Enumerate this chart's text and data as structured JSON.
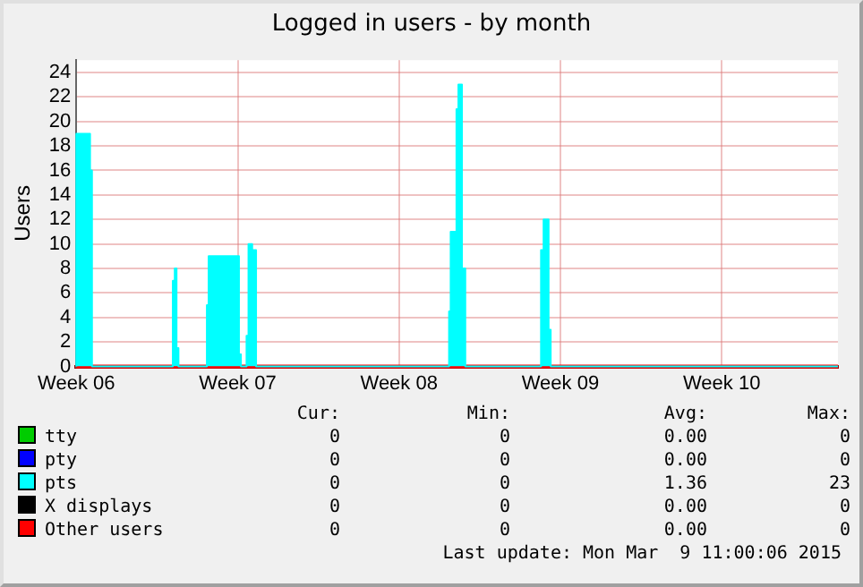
{
  "chart_data": {
    "type": "area",
    "title": "Logged in users - by month",
    "ylabel": "Users",
    "xlim": [
      "2015-02-02",
      "2015-03-07T01:00"
    ],
    "xticks": [
      {
        "value": "2015-02-02",
        "label": "Week 06"
      },
      {
        "value": "2015-02-09",
        "label": "Week 07"
      },
      {
        "value": "2015-02-16",
        "label": "Week 08"
      },
      {
        "value": "2015-02-23",
        "label": "Week 09"
      },
      {
        "value": "2015-03-02",
        "label": "Week 10"
      }
    ],
    "ylim": [
      0,
      25
    ],
    "yticks": [
      0,
      2,
      4,
      6,
      8,
      10,
      12,
      14,
      16,
      18,
      20,
      22,
      24
    ],
    "grid": true,
    "legend": "bottom left",
    "series": [
      {
        "name": "tty",
        "type": "line",
        "color": "#00cc00"
      },
      {
        "name": "pty",
        "type": "line",
        "color": "#0000ff"
      },
      {
        "name": "pts",
        "color": "#00ffff",
        "x": [
          "2015-02-02",
          "2015-02-02",
          "2015-02-02T14:17",
          "2015-02-02T14:17",
          "2015-02-02T16:18",
          "2015-02-02T16:18",
          "2015-02-06T04:28",
          "2015-02-06T04:28",
          "2015-02-06T06:29",
          "2015-02-06T06:29",
          "2015-02-06T08:20",
          "2015-02-06T08:20",
          "2015-02-06T10:21",
          "2015-02-06T10:21",
          "2015-02-07T15:55",
          "2015-02-07T15:55",
          "2015-02-07T17:45",
          "2015-02-07T17:45",
          "2015-02-09T01:21",
          "2015-02-09T01:21",
          "2015-02-09T03:22",
          "2015-02-09T03:22",
          "2015-02-09T09:14",
          "2015-02-09T09:14",
          "2015-02-09T11:15",
          "2015-02-09T11:15",
          "2015-02-09T15:07",
          "2015-02-09T15:07",
          "2015-02-09T19:09",
          "2015-02-09T19:09",
          "2015-02-18T04:05",
          "2015-02-18T04:05",
          "2015-02-18T05:46",
          "2015-02-18T05:46",
          "2015-02-18T11:48",
          "2015-02-18T11:48",
          "2015-02-18T13:49",
          "2015-02-18T13:49",
          "2015-02-18T17:31",
          "2015-02-18T17:31",
          "2015-02-18T21:00",
          "2015-02-18T21:00",
          "2015-02-22T03:50",
          "2015-02-22T03:50",
          "2015-02-22T06:31",
          "2015-02-22T06:31",
          "2015-02-22T11:44",
          "2015-02-22T11:44",
          "2015-02-22T13:55",
          "2015-02-22T13:55",
          "2015-03-07T01:00"
        ],
        "values": [
          0,
          19,
          19,
          16,
          16,
          0,
          0,
          7,
          7,
          8,
          8,
          1.5,
          1.5,
          0,
          0,
          5,
          5,
          9,
          9,
          1,
          1,
          0,
          0,
          2.5,
          2.5,
          10,
          10,
          9.5,
          9.5,
          0,
          0,
          4.5,
          4.5,
          11,
          11,
          21,
          21,
          23,
          23,
          8,
          8,
          0,
          0,
          9.5,
          9.5,
          12,
          12,
          3,
          3,
          0,
          0
        ]
      },
      {
        "name": "X displays",
        "type": "line",
        "color": "#000000"
      },
      {
        "name": "Other users",
        "type": "line",
        "color": "#ff0000",
        "x": [
          "2015-02-02",
          "2015-03-07T01:00"
        ],
        "values": [
          0,
          0
        ]
      }
    ],
    "annotations": [
      "Cur: Min: Avg: Max:",
      "0 0 0.00 0",
      "0 0 0.00 0",
      "0 0 1.36 23",
      "0 0 0.00 0",
      "0 0 0.00 0",
      "Last update: Mon Mar  9 11:00:06 2015"
    ]
  }
}
